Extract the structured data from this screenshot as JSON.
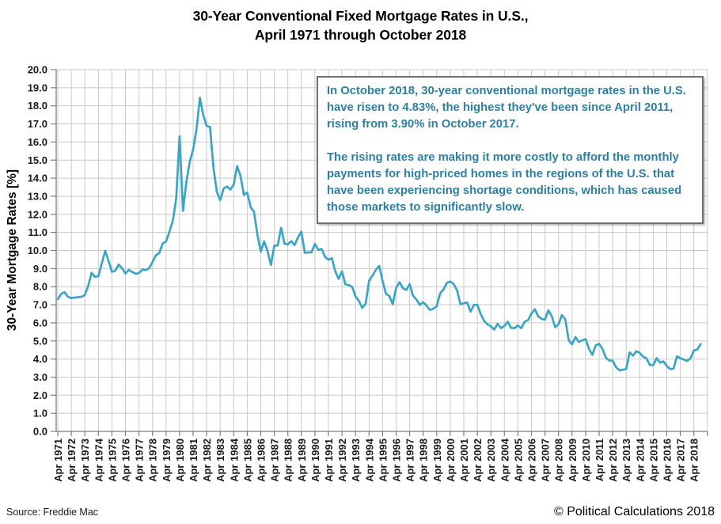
{
  "title": {
    "line1": "30-Year Conventional Fixed Mortgage Rates in U.S.,",
    "line2": "April 1971 through October 2018"
  },
  "annotation_box": {
    "paragraph1": "In October 2018, 30-year conventional mortgage rates in the U.S. have risen to 4.83%, the highest they've been since April 2011, rising from 3.90% in October 2017.",
    "paragraph2": "The rising rates are making it more costly to afford the monthly payments for high-priced homes in the regions of the U.S. that have been experiencing shortage conditions, which has caused those markets to significantly slow."
  },
  "footer": {
    "source": "Source: Freddie Mac",
    "copyright": "© Political Calculations 2018"
  },
  "colors": {
    "line": "#3BA5C4",
    "grid": "#C9C9C9",
    "axis": "#7F7F7F",
    "annotation_text": "#2E7FA0",
    "annotation_border": "#6E6E6E",
    "text": "#000000"
  },
  "chart_data": {
    "type": "line",
    "title": "30-Year Conventional Fixed Mortgage Rates in U.S., April 1971 through October 2018",
    "grid": true,
    "legend_position": "none",
    "x_axis": {
      "start": "Apr 1971",
      "end": "Oct 2018",
      "tick_labels": [
        "Apr 1971",
        "Apr 1972",
        "Apr 1973",
        "Apr 1974",
        "Apr 1975",
        "Apr 1976",
        "Apr 1977",
        "Apr 1978",
        "Apr 1979",
        "Apr 1980",
        "Apr 1981",
        "Apr 1982",
        "Apr 1983",
        "Apr 1984",
        "Apr 1985",
        "Apr 1986",
        "Apr 1987",
        "Apr 1988",
        "Apr 1989",
        "Apr 1990",
        "Apr 1991",
        "Apr 1992",
        "Apr 1993",
        "Apr 1994",
        "Apr 1995",
        "Apr 1996",
        "Apr 1997",
        "Apr 1998",
        "Apr 1999",
        "Apr 2000",
        "Apr 2001",
        "Apr 2002",
        "Apr 2003",
        "Apr 2004",
        "Apr 2005",
        "Apr 2006",
        "Apr 2007",
        "Apr 2008",
        "Apr 2009",
        "Apr 2010",
        "Apr 2011",
        "Apr 2012",
        "Apr 2013",
        "Apr 2014",
        "Apr 2015",
        "Apr 2016",
        "Apr 2017",
        "Apr 2018"
      ]
    },
    "y_axis": {
      "title": "30-Year Mortgage Rates [%]",
      "ylim": [
        0,
        20
      ],
      "tick_step": 1.0,
      "tick_labels": [
        "20.0",
        "19.0",
        "18.0",
        "17.0",
        "16.0",
        "15.0",
        "14.0",
        "13.0",
        "12.0",
        "11.0",
        "10.0",
        "9.0",
        "8.0",
        "7.0",
        "6.0",
        "5.0",
        "4.0",
        "3.0",
        "2.0",
        "1.0",
        "0.0"
      ]
    },
    "series": [
      {
        "name": "30-year conventional fixed mortgage rate",
        "start": "Apr 1971",
        "end": "Oct 2018",
        "interval_months": 3,
        "values": [
          7.31,
          7.6,
          7.7,
          7.44,
          7.37,
          7.4,
          7.42,
          7.44,
          7.54,
          8.05,
          8.77,
          8.54,
          8.58,
          9.28,
          9.98,
          9.43,
          8.82,
          8.89,
          9.22,
          9.02,
          8.73,
          8.93,
          8.81,
          8.72,
          8.75,
          8.95,
          8.92,
          9.02,
          9.36,
          9.74,
          9.86,
          10.39,
          10.5,
          11.04,
          11.64,
          12.88,
          16.32,
          12.19,
          13.79,
          14.9,
          15.58,
          16.7,
          18.45,
          17.48,
          16.89,
          16.82,
          14.61,
          13.25,
          12.78,
          13.42,
          13.54,
          13.37,
          13.65,
          14.67,
          14.13,
          13.08,
          13.2,
          12.4,
          12.14,
          10.88,
          9.94,
          10.51,
          9.97,
          9.2,
          10.27,
          10.28,
          11.26,
          10.38,
          10.34,
          10.52,
          10.3,
          10.73,
          11.05,
          9.88,
          9.89,
          9.9,
          10.37,
          10.04,
          10.08,
          9.64,
          9.49,
          9.58,
          8.86,
          8.43,
          8.85,
          8.13,
          8.09,
          7.99,
          7.47,
          7.21,
          6.83,
          7.06,
          8.32,
          8.61,
          8.93,
          9.15,
          8.32,
          7.61,
          7.48,
          7.03,
          7.93,
          8.25,
          7.92,
          7.82,
          8.14,
          7.5,
          7.29,
          6.99,
          7.14,
          6.95,
          6.71,
          6.79,
          6.92,
          7.63,
          7.85,
          8.21,
          8.29,
          8.15,
          7.8,
          7.03,
          7.08,
          7.13,
          6.62,
          7.0,
          6.99,
          6.49,
          6.11,
          5.92,
          5.81,
          5.63,
          5.95,
          5.71,
          5.83,
          6.06,
          5.72,
          5.71,
          5.86,
          5.7,
          6.07,
          6.15,
          6.51,
          6.76,
          6.36,
          6.22,
          6.18,
          6.7,
          6.38,
          5.76,
          5.92,
          6.43,
          6.2,
          5.05,
          4.81,
          5.22,
          4.95,
          5.03,
          5.1,
          4.56,
          4.23,
          4.76,
          4.84,
          4.55,
          4.07,
          3.92,
          3.91,
          3.55,
          3.38,
          3.41,
          3.45,
          4.37,
          4.19,
          4.43,
          4.34,
          4.13,
          4.04,
          3.67,
          3.67,
          4.05,
          3.8,
          3.87,
          3.61,
          3.44,
          3.47,
          4.15,
          4.05,
          3.97,
          3.9,
          4.03,
          4.47,
          4.53,
          4.83
        ]
      }
    ]
  }
}
